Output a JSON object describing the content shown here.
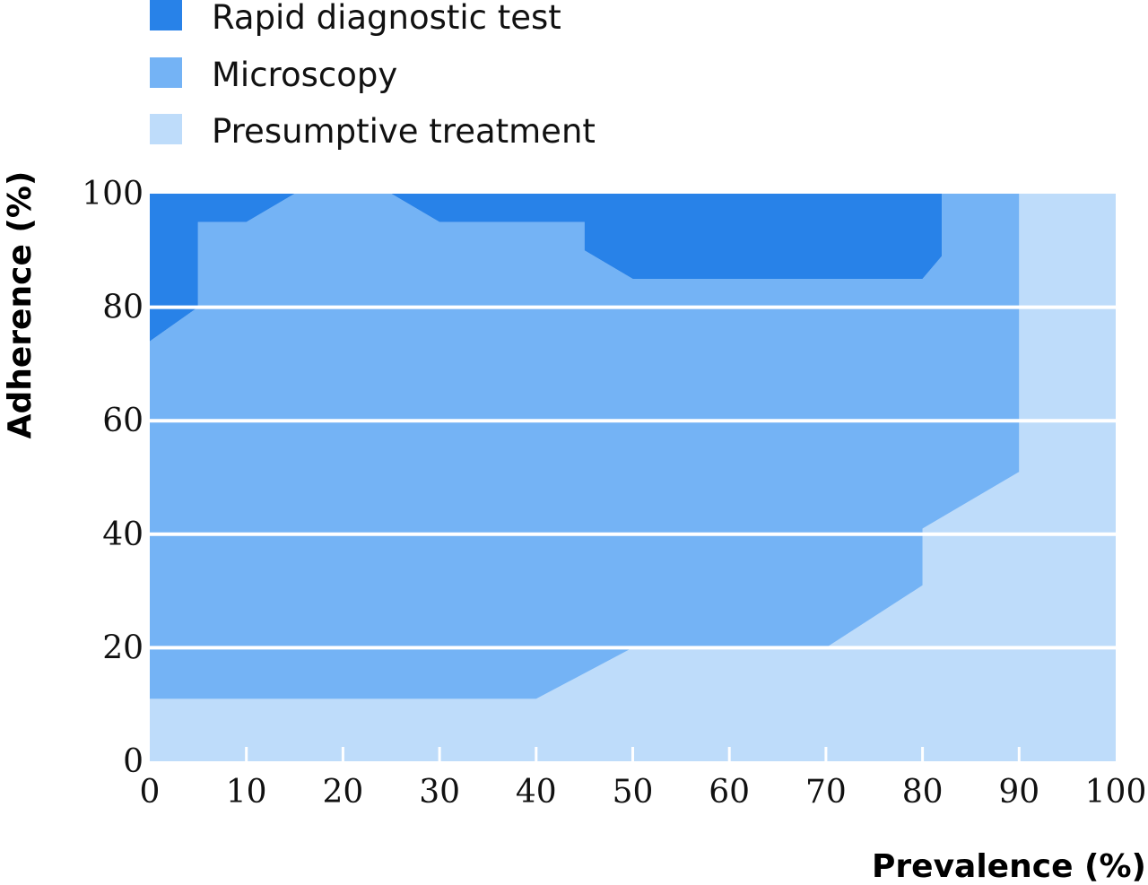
{
  "chart_data": {
    "type": "area",
    "title": "",
    "xlabel": "Prevalence (%)",
    "ylabel": "Adherence (%)",
    "xlim": [
      0,
      100
    ],
    "ylim": [
      0,
      100
    ],
    "x_ticks": [
      "0",
      "10",
      "20",
      "30",
      "40",
      "50",
      "60",
      "70",
      "80",
      "90",
      "100"
    ],
    "y_ticks": [
      "0",
      "20",
      "40",
      "60",
      "80",
      "100"
    ],
    "grid": "horizontal",
    "legend_position": "top-left",
    "series": [
      {
        "name": "Rapid diagnostic test",
        "color": "#2882e8",
        "region": [
          [
            0,
            74
          ],
          [
            0,
            100
          ],
          [
            82,
            100
          ],
          [
            82,
            89
          ],
          [
            80,
            85
          ],
          [
            50,
            85
          ],
          [
            45,
            90
          ],
          [
            45,
            95
          ],
          [
            30,
            95
          ],
          [
            25,
            100
          ],
          [
            15,
            100
          ],
          [
            10,
            95
          ],
          [
            5,
            95
          ],
          [
            5,
            80
          ]
        ]
      },
      {
        "name": "Microscopy",
        "color": "#74b3f5",
        "region": [
          [
            0,
            74
          ],
          [
            5,
            80
          ],
          [
            5,
            95
          ],
          [
            10,
            95
          ],
          [
            15,
            100
          ],
          [
            25,
            100
          ],
          [
            30,
            95
          ],
          [
            45,
            95
          ],
          [
            45,
            90
          ],
          [
            50,
            85
          ],
          [
            80,
            85
          ],
          [
            82,
            89
          ],
          [
            82,
            100
          ],
          [
            90,
            100
          ],
          [
            90,
            51
          ],
          [
            80,
            41
          ],
          [
            80,
            31
          ],
          [
            70,
            20
          ],
          [
            50,
            20
          ],
          [
            40,
            11
          ],
          [
            0,
            11
          ]
        ]
      },
      {
        "name": "Presumptive treatment",
        "color": "#bedcfa",
        "region": [
          [
            0,
            0
          ],
          [
            100,
            0
          ],
          [
            100,
            100
          ],
          [
            90,
            100
          ],
          [
            90,
            51
          ],
          [
            80,
            41
          ],
          [
            80,
            31
          ],
          [
            70,
            20
          ],
          [
            50,
            20
          ],
          [
            40,
            11
          ],
          [
            0,
            11
          ]
        ]
      }
    ]
  }
}
